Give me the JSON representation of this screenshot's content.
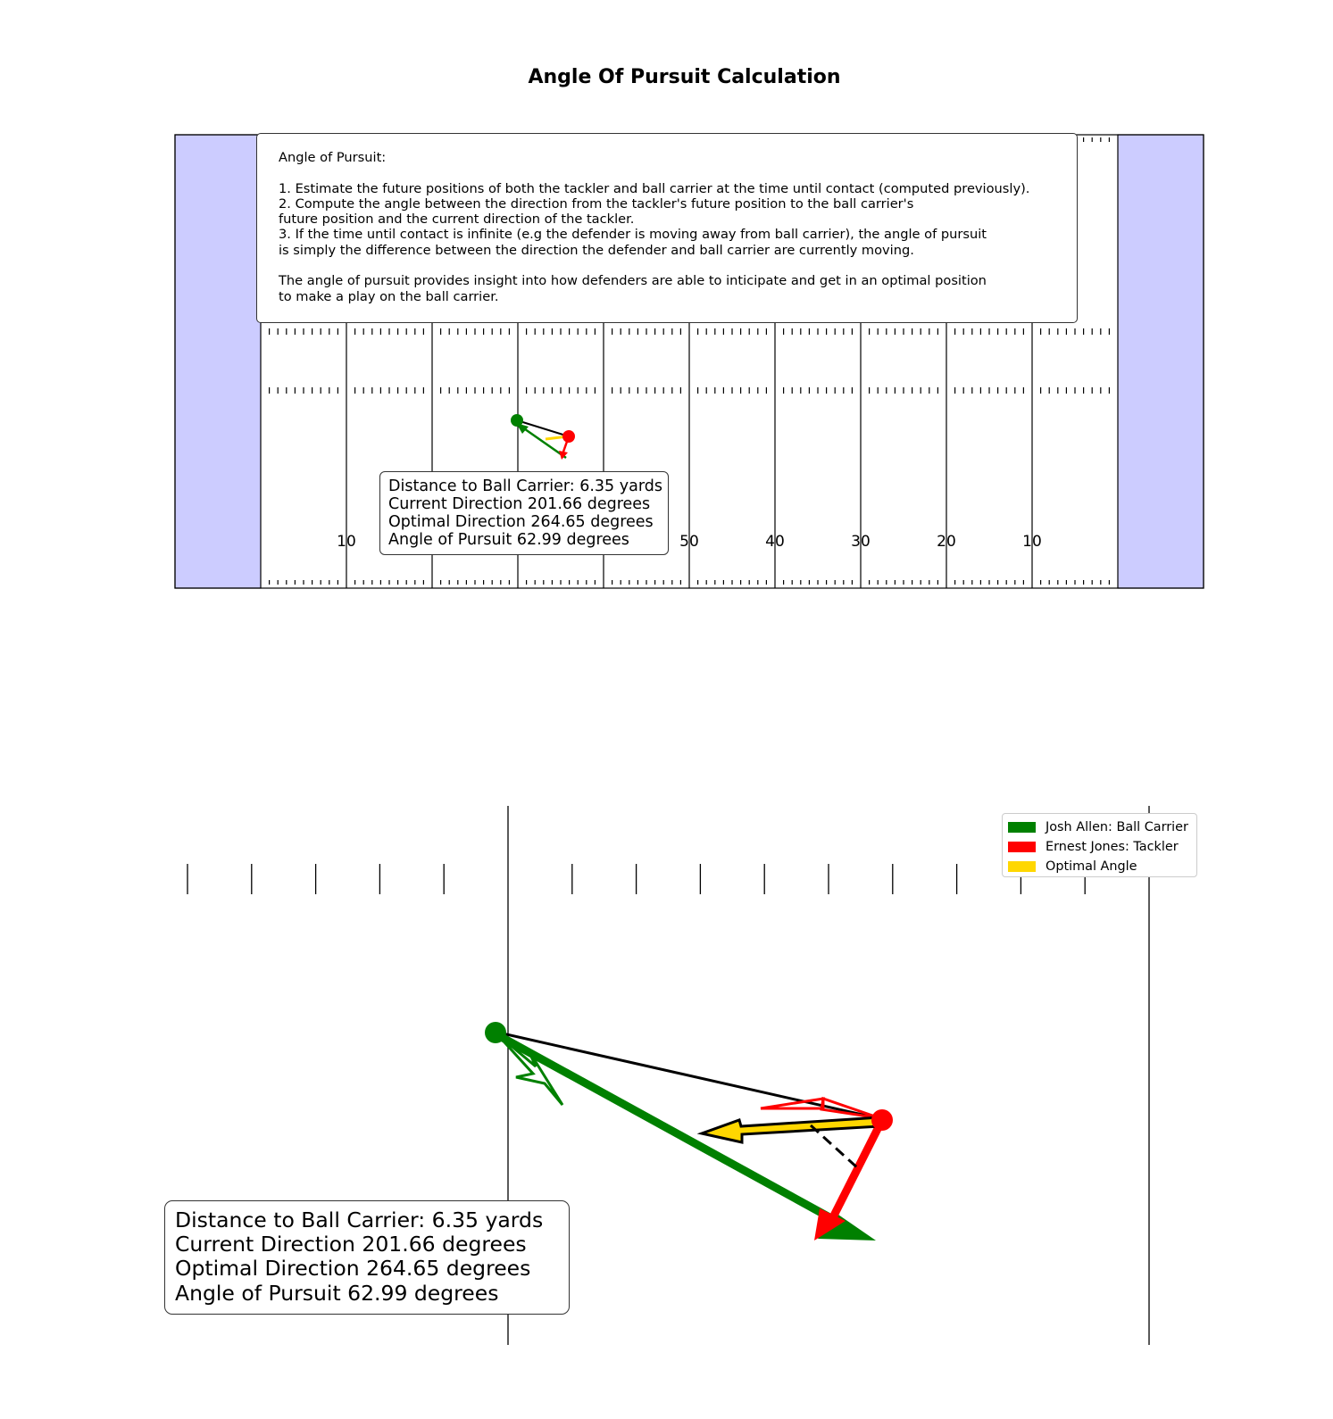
{
  "title": "Angle Of Pursuit Calculation",
  "colors": {
    "endzone": "#ccccff",
    "ball_carrier": "#008000",
    "tackler": "#ff0000",
    "optimal": "#ffd700",
    "line": "#000000"
  },
  "explanation": {
    "heading": "Angle of Pursuit:",
    "lines": [
      "1. Estimate the future positions of both the tackler and ball carrier at the time until contact (computed previously).",
      "2. Compute the angle between the direction from the tackler's future position to the ball carrier's",
      "future position and the current direction of the tackler.",
      "3. If the time until contact is infinite (e.g the defender is moving away from ball carrier), the angle of pursuit",
      "is simply the difference between the direction the defender and ball carrier are currently moving.",
      "",
      "The angle of pursuit provides insight into how defenders are able to inticipate and get in an optimal position",
      "to make a play on the ball carrier."
    ]
  },
  "field_numbers": [
    {
      "label": "10",
      "line": 1
    },
    {
      "label": "50",
      "line": 5
    },
    {
      "label": "40",
      "line": 6
    },
    {
      "label": "30",
      "line": 7
    },
    {
      "label": "20",
      "line": 8
    },
    {
      "label": "10",
      "line": 9
    }
  ],
  "stats": [
    "Distance to Ball Carrier: 6.35 yards",
    "Current Direction 201.66 degrees",
    "Optimal Direction 264.65 degrees",
    "Angle of Pursuit 62.99 degrees"
  ],
  "legend": [
    {
      "label": "Josh Allen: Ball Carrier",
      "color": "#008000"
    },
    {
      "label": "Ernest Jones: Tackler",
      "color": "#ff0000"
    },
    {
      "label": "Optimal Angle",
      "color": "#ffd700"
    }
  ],
  "metrics": {
    "distance_yards": 6.35,
    "current_direction_deg": 201.66,
    "optimal_direction_deg": 264.65,
    "angle_of_pursuit_deg": 62.99
  }
}
